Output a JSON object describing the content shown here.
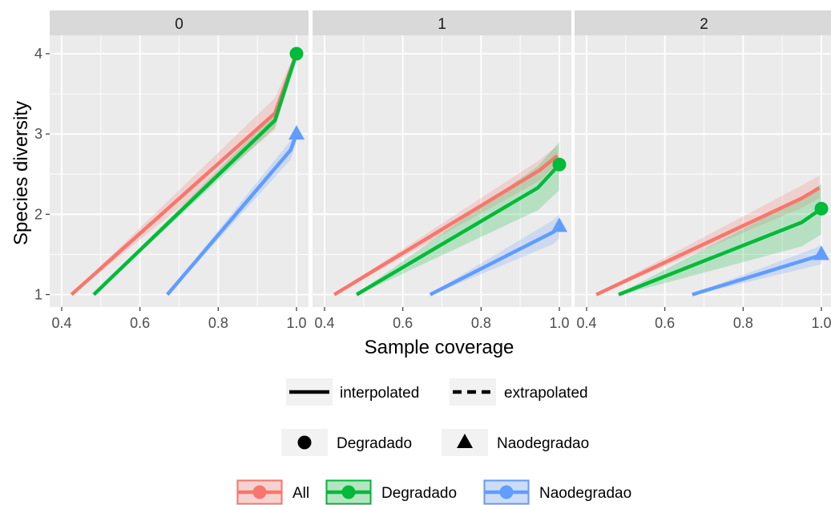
{
  "chart_data": {
    "type": "line",
    "xlabel": "Sample coverage",
    "ylabel": "Species diversity",
    "xlim": [
      0.4,
      1.0
    ],
    "ylim": [
      1,
      4
    ],
    "x_ticks": [
      "0.4",
      "0.6",
      "0.8",
      "1.0"
    ],
    "x_tick_values": [
      0.4,
      0.6,
      0.8,
      1.0
    ],
    "y_ticks": [
      "1",
      "2",
      "3",
      "4"
    ],
    "y_tick_values": [
      1,
      2,
      3,
      4
    ],
    "grid": true,
    "legend_placement": "bottom",
    "colors": {
      "All": "#f8766d",
      "Degradado": "#00ba38",
      "Naodegradao": "#619cff"
    },
    "panels": [
      {
        "strip": "0",
        "series": [
          {
            "name": "All",
            "color": "#f8766d",
            "points": [
              [
                0.425,
                1.0
              ],
              [
                0.945,
                3.26
              ],
              [
                1.0,
                4.0
              ]
            ],
            "band": [
              [
                0.425,
                0.99,
                1.01
              ],
              [
                0.945,
                3.05,
                3.45
              ],
              [
                1.0,
                3.95,
                4.05
              ]
            ],
            "observed": null
          },
          {
            "name": "Degradado",
            "color": "#00ba38",
            "points": [
              [
                0.482,
                1.0
              ],
              [
                0.945,
                3.17
              ],
              [
                1.0,
                4.0
              ]
            ],
            "band": [
              [
                0.482,
                0.99,
                1.01
              ],
              [
                0.945,
                3.08,
                3.26
              ],
              [
                1.0,
                3.97,
                4.03
              ]
            ],
            "observed": [
              1.0,
              4.0
            ],
            "shape": "circle"
          },
          {
            "name": "Naodegradao",
            "color": "#619cff",
            "points": [
              [
                0.67,
                1.0
              ],
              [
                0.985,
                2.8
              ],
              [
                1.0,
                3.0
              ]
            ],
            "band": [
              [
                0.67,
                0.99,
                1.01
              ],
              [
                0.985,
                2.68,
                2.92
              ],
              [
                1.0,
                2.9,
                3.1
              ]
            ],
            "observed": [
              1.0,
              3.0
            ],
            "shape": "triangle"
          }
        ]
      },
      {
        "strip": "1",
        "series": [
          {
            "name": "All",
            "color": "#f8766d",
            "points": [
              [
                0.425,
                1.0
              ],
              [
                0.95,
                2.55
              ],
              [
                0.995,
                2.73
              ]
            ],
            "band": [
              [
                0.425,
                0.99,
                1.01
              ],
              [
                0.95,
                2.42,
                2.68
              ],
              [
                0.995,
                2.62,
                2.85
              ]
            ],
            "observed": null
          },
          {
            "name": "Degradado",
            "color": "#00ba38",
            "points": [
              [
                0.482,
                1.0
              ],
              [
                0.945,
                2.33
              ],
              [
                1.0,
                2.62
              ]
            ],
            "band": [
              [
                0.482,
                0.99,
                1.01
              ],
              [
                0.945,
                2.05,
                2.6
              ],
              [
                1.0,
                2.3,
                2.9
              ]
            ],
            "observed": [
              1.0,
              2.62
            ],
            "shape": "circle"
          },
          {
            "name": "Naodegradao",
            "color": "#619cff",
            "points": [
              [
                0.67,
                1.0
              ],
              [
                0.985,
                1.78
              ],
              [
                1.0,
                1.85
              ]
            ],
            "band": [
              [
                0.67,
                0.99,
                1.01
              ],
              [
                0.985,
                1.63,
                1.93
              ],
              [
                1.0,
                1.7,
                2.0
              ]
            ],
            "observed": [
              1.0,
              1.85
            ],
            "shape": "triangle"
          }
        ]
      },
      {
        "strip": "2",
        "series": [
          {
            "name": "All",
            "color": "#f8766d",
            "points": [
              [
                0.425,
                1.0
              ],
              [
                0.95,
                2.2
              ],
              [
                0.995,
                2.33
              ]
            ],
            "band": [
              [
                0.425,
                0.99,
                1.01
              ],
              [
                0.95,
                2.08,
                2.36
              ],
              [
                0.995,
                2.2,
                2.48
              ]
            ],
            "observed": null
          },
          {
            "name": "Degradado",
            "color": "#00ba38",
            "points": [
              [
                0.482,
                1.0
              ],
              [
                0.95,
                1.9
              ],
              [
                1.0,
                2.07
              ]
            ],
            "band": [
              [
                0.482,
                0.99,
                1.01
              ],
              [
                0.95,
                1.6,
                2.2
              ],
              [
                1.0,
                1.75,
                2.38
              ]
            ],
            "observed": [
              1.0,
              2.07
            ],
            "shape": "circle"
          },
          {
            "name": "Naodegradao",
            "color": "#619cff",
            "points": [
              [
                0.67,
                1.0
              ],
              [
                0.985,
                1.47
              ],
              [
                1.0,
                1.5
              ]
            ],
            "band": [
              [
                0.67,
                0.99,
                1.01
              ],
              [
                0.985,
                1.36,
                1.58
              ],
              [
                1.0,
                1.38,
                1.62
              ]
            ],
            "observed": [
              1.0,
              1.5
            ],
            "shape": "triangle"
          }
        ]
      }
    ],
    "legends": [
      {
        "type": "linetype",
        "entries": [
          {
            "label": "interpolated",
            "style": "solid"
          },
          {
            "label": "extrapolated",
            "style": "dashed"
          }
        ]
      },
      {
        "type": "shape",
        "entries": [
          {
            "label": "Degradado",
            "shape": "circle"
          },
          {
            "label": "Naodegradao",
            "shape": "triangle"
          }
        ]
      },
      {
        "type": "color",
        "entries": [
          {
            "label": "All",
            "color": "#f8766d"
          },
          {
            "label": "Degradado",
            "color": "#00ba38"
          },
          {
            "label": "Naodegradao",
            "color": "#619cff"
          }
        ]
      }
    ]
  }
}
